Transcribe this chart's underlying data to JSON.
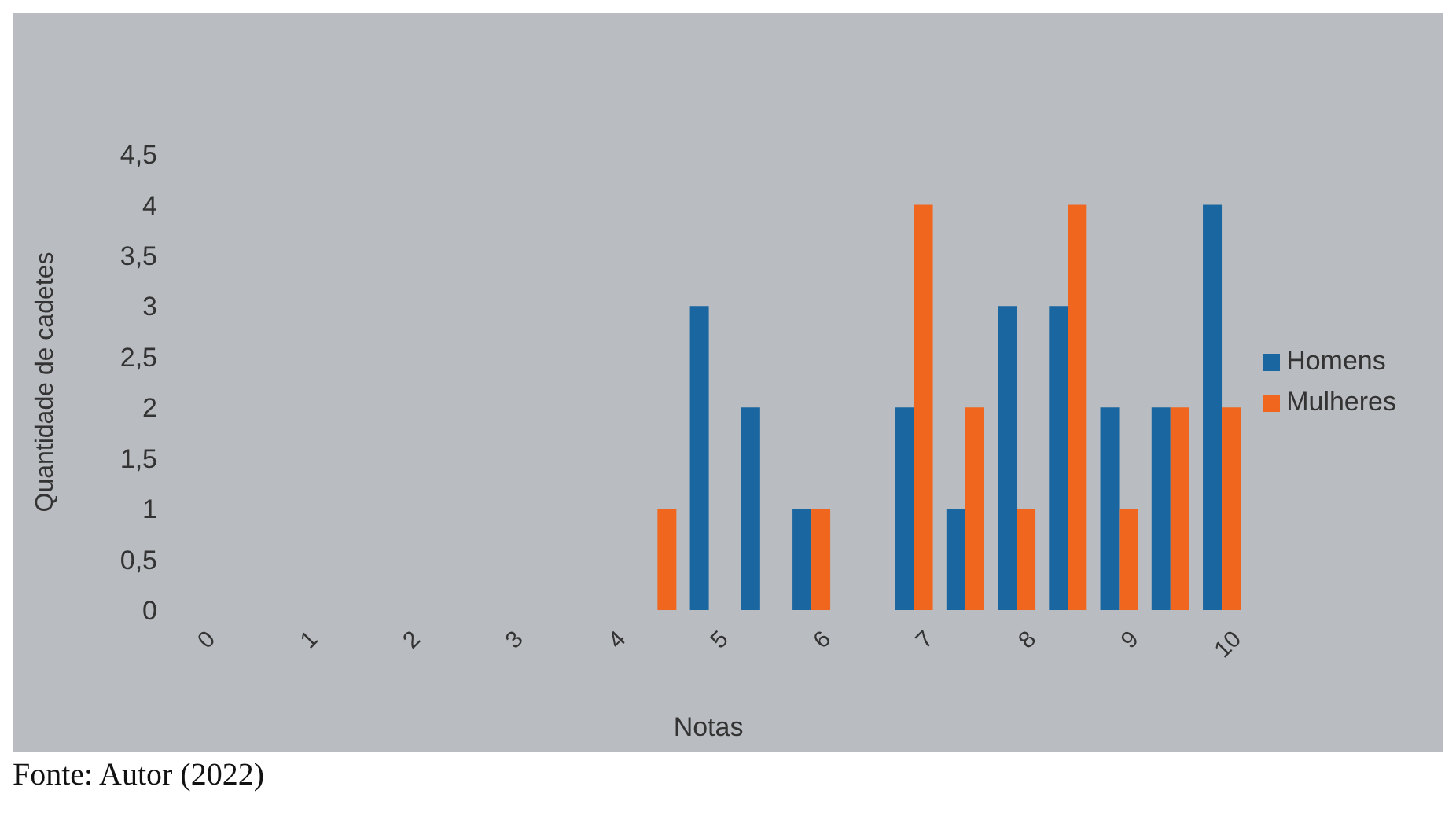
{
  "chart_data": {
    "type": "bar",
    "xlabel": "Notas",
    "ylabel": "Quantidade de cadetes",
    "categories": [
      "0",
      null,
      "1",
      null,
      "2",
      null,
      "3",
      null,
      "4",
      null,
      "5",
      null,
      "6",
      null,
      "7",
      null,
      "8",
      null,
      "9",
      null,
      "10"
    ],
    "series": [
      {
        "name": "Homens",
        "color": "#1a66a0",
        "values": [
          0,
          0,
          0,
          0,
          0,
          0,
          0,
          0,
          0,
          0,
          3,
          2,
          1,
          0,
          2,
          1,
          3,
          3,
          2,
          2,
          4
        ]
      },
      {
        "name": "Mulheres",
        "color": "#f0661e",
        "values": [
          0,
          0,
          0,
          0,
          0,
          0,
          0,
          0,
          0,
          1,
          0,
          0,
          1,
          0,
          4,
          2,
          1,
          4,
          1,
          2,
          2
        ]
      }
    ],
    "ylim": [
      0,
      4.5
    ],
    "yticks": [
      0,
      {
        "value": 0.5,
        "label": "0,5"
      },
      1,
      {
        "value": 1.5,
        "label": "1,5"
      },
      2,
      {
        "value": 2.5,
        "label": "2,5"
      },
      3,
      {
        "value": 3.5,
        "label": "3,5"
      },
      4,
      {
        "value": 4.5,
        "label": "4,5"
      }
    ],
    "grid": false,
    "legend": "right",
    "annotations": [
      "Fonte: Autor (2022)"
    ]
  }
}
